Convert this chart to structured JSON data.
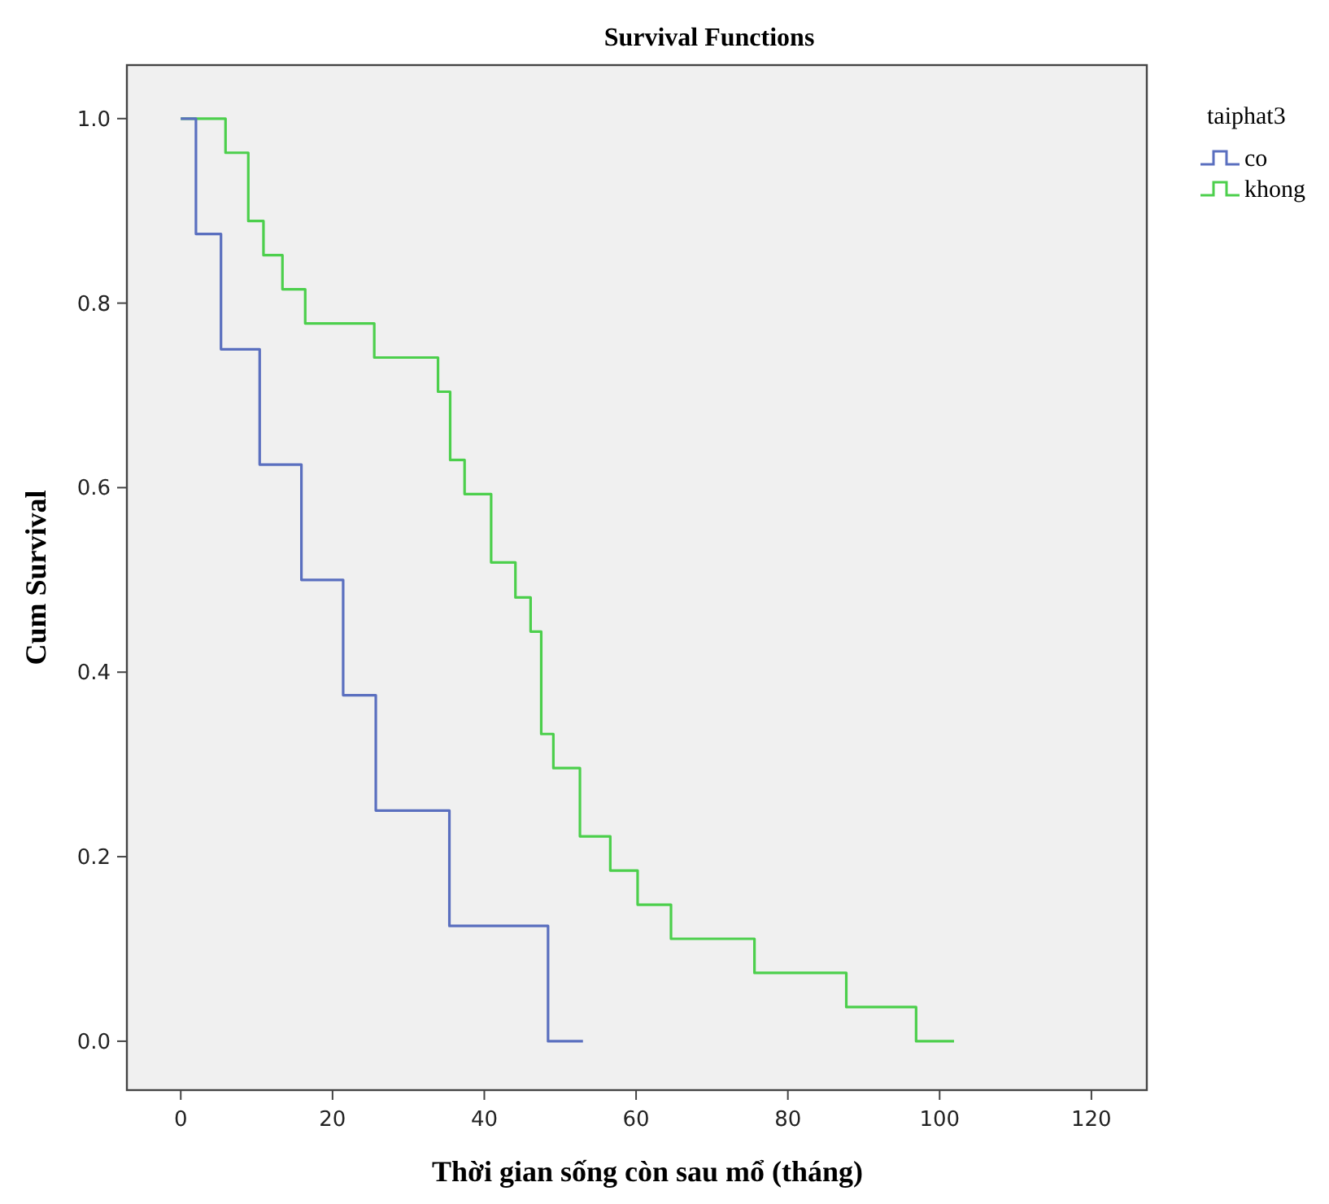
{
  "chart_data": {
    "type": "step",
    "title": "Survival Functions",
    "xlabel": "Thời gian sống còn sau mổ (tháng)",
    "ylabel": "Cum Survival",
    "legend_title": "taiphat3",
    "legend": "right",
    "grid": false,
    "xlim": [
      -7.1,
      127.3
    ],
    "xticks": [
      0,
      20,
      40,
      60,
      80,
      100,
      120
    ],
    "ylim": [
      -0.053,
      1.058
    ],
    "yticks": [
      {
        "value": 0,
        "label": "0.0"
      },
      {
        "value": 0.2,
        "label": "0.2"
      },
      {
        "value": 0.4,
        "label": "0.4"
      },
      {
        "value": 0.6,
        "label": "0.6"
      },
      {
        "value": 0.8,
        "label": "0.8"
      },
      {
        "value": 1,
        "label": "1.0"
      }
    ],
    "series": [
      {
        "name": "co",
        "color": "#5a6fbf",
        "x": [
          0,
          2,
          5.3,
          10.4,
          15.9,
          21.4,
          25.7,
          35.4,
          48.4,
          53
        ],
        "values": [
          1,
          0.875,
          0.75,
          0.625,
          0.5,
          0.375,
          0.25,
          0.125,
          0,
          0
        ]
      },
      {
        "name": "khong",
        "color": "#4ccf4c",
        "x": [
          0,
          5.9,
          8.9,
          10.9,
          13.4,
          16.4,
          25.5,
          33.9,
          35.5,
          37.4,
          40.9,
          44.1,
          46.1,
          47.5,
          49.1,
          52.6,
          56.6,
          60.2,
          64.6,
          75.6,
          87.7,
          96.9,
          101.9
        ],
        "values": [
          1,
          0.963,
          0.889,
          0.852,
          0.815,
          0.778,
          0.741,
          0.704,
          0.63,
          0.593,
          0.519,
          0.481,
          0.444,
          0.333,
          0.296,
          0.222,
          0.185,
          0.148,
          0.111,
          0.074,
          0.037,
          0,
          0
        ]
      }
    ]
  }
}
